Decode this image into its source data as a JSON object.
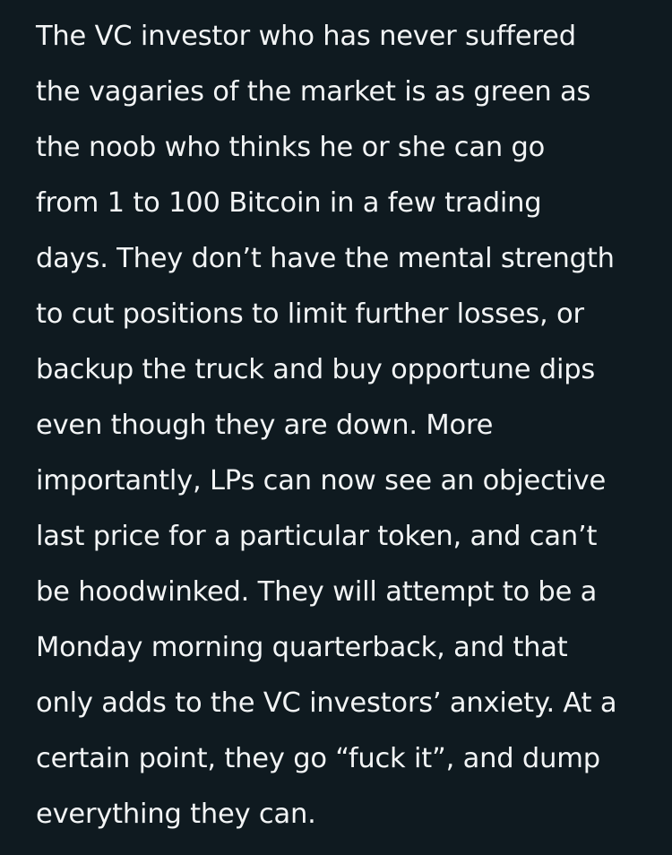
{
  "article": {
    "lines": [
      "The VC investor who has never suffered",
      "the vagaries of the market is as green as",
      "the noob who thinks he or she can go",
      "from 1 to 100 Bitcoin in a few trading",
      "days. They don’t have the mental strength",
      "to cut positions to limit further losses, or",
      "backup the truck and buy opportune dips",
      "even though they are down. More",
      "importantly, LPs can now see an objective",
      "last price for a particular token, and can’t",
      "be hoodwinked. They will attempt to be a",
      "Monday morning quarterback, and that",
      "only adds to the VC investors’ anxiety. At a",
      "certain point, they go “fuck it”, and dump",
      "everything they can."
    ]
  },
  "colors": {
    "background": "#0f1a20",
    "text": "#f2f4f5"
  }
}
